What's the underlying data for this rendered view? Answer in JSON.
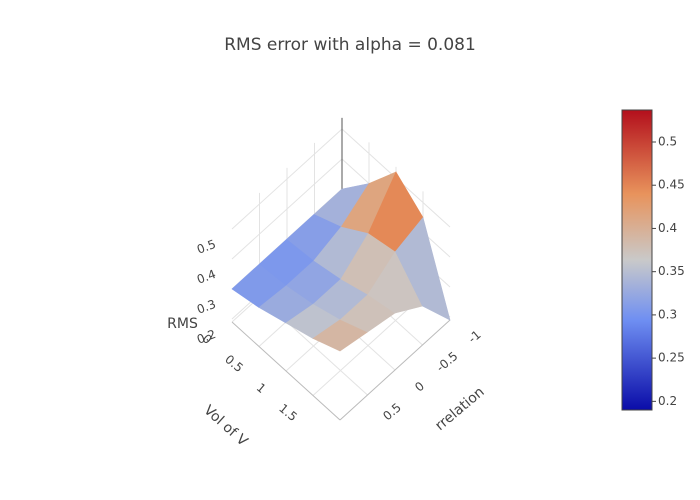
{
  "chart_data": {
    "type": "surface",
    "title": "RMS error with alpha = 0.081",
    "x_label": "Vol of V",
    "y_label": "rrelation",
    "z_label": "RMS",
    "x": [
      0,
      0.5,
      1,
      1.5,
      2
    ],
    "y": [
      -1,
      -0.5,
      0,
      0.5,
      1
    ],
    "z": [
      [
        0.3,
        0.3,
        0.3,
        0.3,
        0.3
      ],
      [
        0.4,
        0.34,
        0.31,
        0.31,
        0.32
      ],
      [
        0.52,
        0.4,
        0.33,
        0.33,
        0.35
      ],
      [
        0.45,
        0.42,
        0.36,
        0.36,
        0.38
      ],
      [
        0.19,
        0.32,
        0.38,
        0.4,
        0.42
      ]
    ],
    "xlim": [
      0,
      2
    ],
    "ylim": [
      -1,
      1
    ],
    "zlim": [
      0.19,
      0.537
    ],
    "xticks": [
      0,
      0.5,
      1,
      1.5
    ],
    "yticks": [
      -1,
      -0.5,
      0,
      0.5
    ],
    "zticks": [
      0.2,
      0.3,
      0.4,
      0.5
    ],
    "colorbar": {
      "cmin": 0.19,
      "cmax": 0.537,
      "ticks": [
        0.2,
        0.25,
        0.3,
        0.35,
        0.4,
        0.45,
        0.5
      ]
    },
    "colorscale": [
      [
        0,
        "#0a0ca8"
      ],
      [
        0.3,
        "#6f8ff2"
      ],
      [
        0.5,
        "#c9c9c9"
      ],
      [
        0.72,
        "#e8935c"
      ],
      [
        1,
        "#b30f1c"
      ]
    ]
  }
}
